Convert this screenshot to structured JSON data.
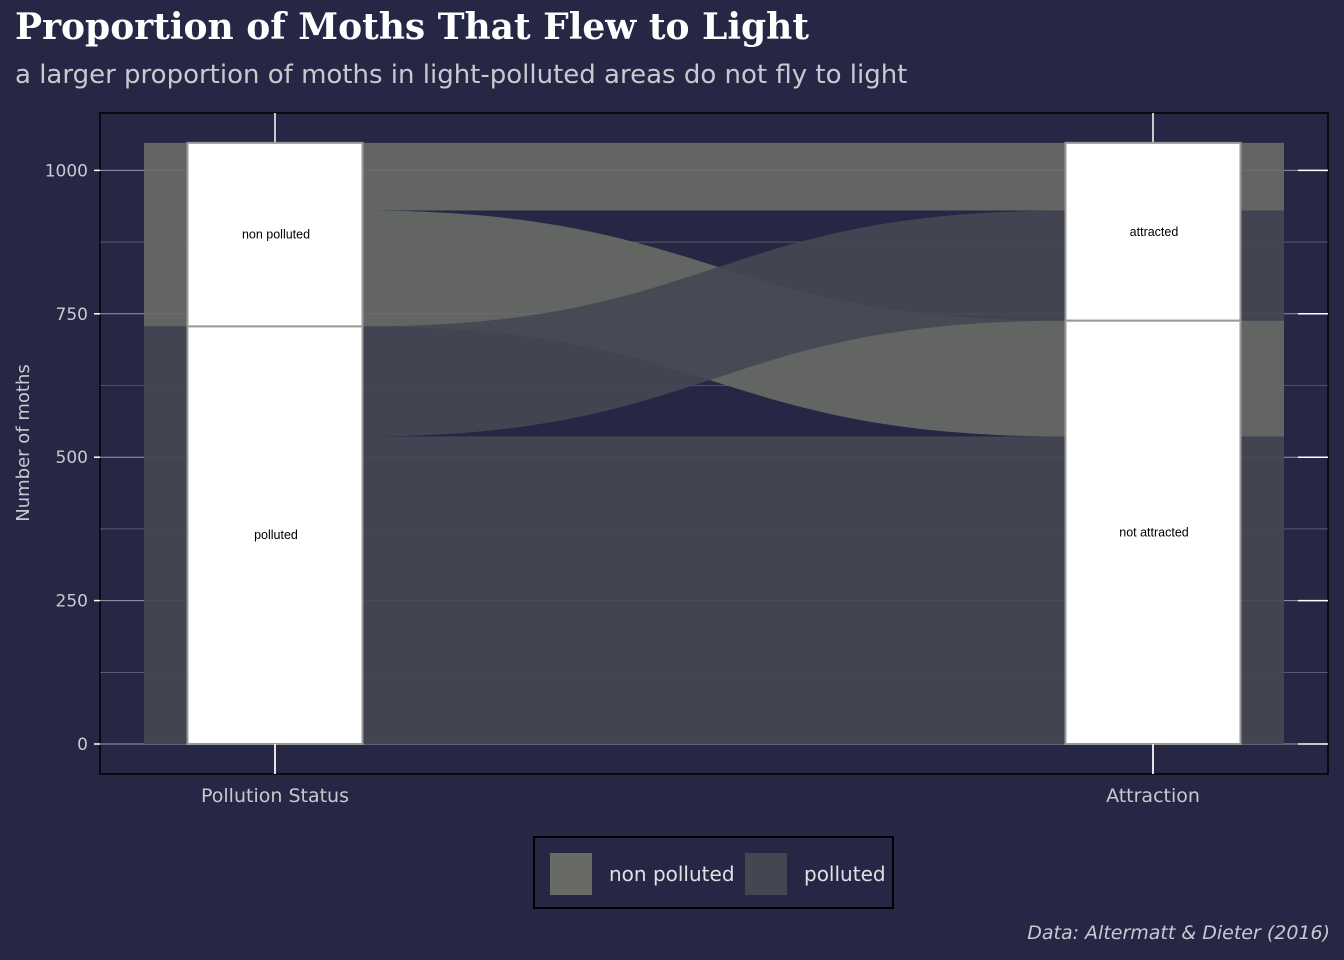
{
  "title": "Proportion of Moths That Flew to Light",
  "subtitle": "a larger proportion of moths in light-polluted areas do not fly to light",
  "caption": "Data: Altermatt & Dieter (2016)",
  "colors": {
    "background": "#252745",
    "non_polluted": "#686a66",
    "polluted": "#444652",
    "stratum_fill": "#ffffff",
    "gridline": "#9a9ba3"
  },
  "legend": {
    "items": [
      {
        "label": "non polluted",
        "color": "#686a66"
      },
      {
        "label": "polluted",
        "color": "#444652"
      }
    ]
  },
  "chart_data": {
    "type": "alluvial",
    "title": "Proportion of Moths That Flew to Light",
    "subtitle": "a larger proportion of moths in light-polluted areas do not fly to light",
    "ylabel": "Number of moths",
    "xlabel": "",
    "axes": [
      "Pollution Status",
      "Attraction"
    ],
    "ylim": [
      0,
      1050
    ],
    "yticks": [
      0,
      250,
      500,
      750,
      1000
    ],
    "grid": true,
    "legend_position": "bottom",
    "strata": [
      {
        "axis": "Pollution Status",
        "label": "non polluted",
        "value": 320
      },
      {
        "axis": "Pollution Status",
        "label": "polluted",
        "value": 728
      },
      {
        "axis": "Attraction",
        "label": "attracted",
        "value": 310
      },
      {
        "axis": "Attraction",
        "label": "not attracted",
        "value": 738
      }
    ],
    "flows": [
      {
        "fill": "non polluted",
        "from": "non polluted",
        "to": "attracted",
        "value": 118
      },
      {
        "fill": "non polluted",
        "from": "non polluted",
        "to": "not attracted",
        "value": 202
      },
      {
        "fill": "polluted",
        "from": "polluted",
        "to": "attracted",
        "value": 192
      },
      {
        "fill": "polluted",
        "from": "polluted",
        "to": "not attracted",
        "value": 536
      }
    ]
  }
}
